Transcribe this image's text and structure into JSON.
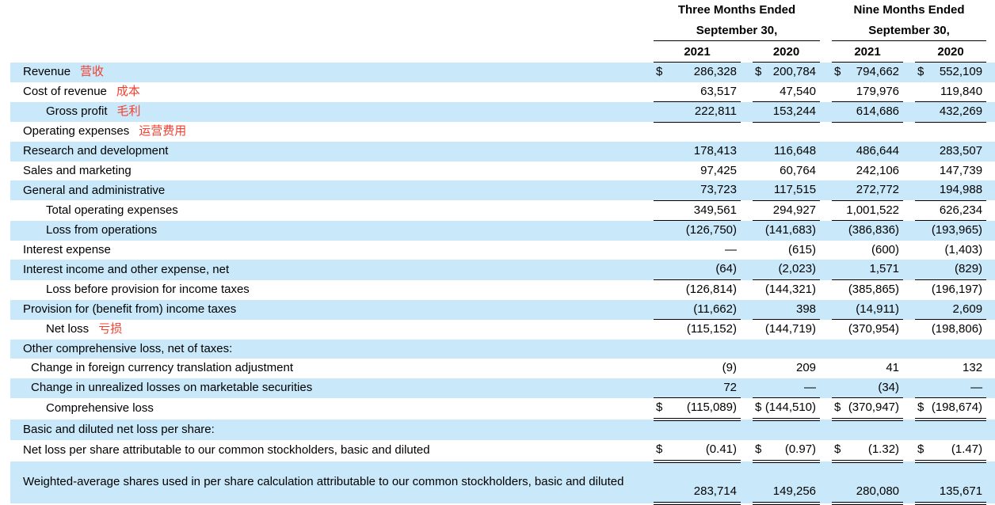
{
  "colors": {
    "row_highlight": "#c9e9fa",
    "annotation_red": "#f43d2d",
    "text": "#000000",
    "background": "#ffffff"
  },
  "table": {
    "currency_symbol": "$",
    "col_groups": [
      {
        "title_line1": "Three Months Ended",
        "title_line2": "September 30,",
        "years": [
          "2021",
          "2020"
        ]
      },
      {
        "title_line1": "Nine Months Ended",
        "title_line2": "September 30,",
        "years": [
          "2021",
          "2020"
        ]
      }
    ],
    "rows": [
      {
        "label": "Revenue",
        "annotation": "营收",
        "indent": 0,
        "highlight": true,
        "dollar": true,
        "underline": "none",
        "values": [
          "286,328",
          "200,784",
          "794,662",
          "552,109"
        ]
      },
      {
        "label": "Cost of revenue",
        "annotation": "成本",
        "indent": 0,
        "highlight": false,
        "dollar": false,
        "underline": "single",
        "values": [
          "63,517",
          "47,540",
          "179,976",
          "119,840"
        ]
      },
      {
        "label": "Gross profit",
        "annotation": "毛利",
        "indent": 2,
        "highlight": true,
        "dollar": false,
        "underline": "single",
        "values": [
          "222,811",
          "153,244",
          "614,686",
          "432,269"
        ]
      },
      {
        "label": "Operating expenses",
        "annotation": "运营费用",
        "indent": 0,
        "highlight": false,
        "dollar": false,
        "underline": "none",
        "values": [
          "",
          "",
          "",
          ""
        ]
      },
      {
        "label": "Research and development",
        "indent": 0,
        "highlight": true,
        "dollar": false,
        "underline": "none",
        "values": [
          "178,413",
          "116,648",
          "486,644",
          "283,507"
        ]
      },
      {
        "label": "Sales and marketing",
        "indent": 0,
        "highlight": false,
        "dollar": false,
        "underline": "none",
        "values": [
          "97,425",
          "60,764",
          "242,106",
          "147,739"
        ]
      },
      {
        "label": "General and administrative",
        "indent": 0,
        "highlight": true,
        "dollar": false,
        "underline": "single",
        "values": [
          "73,723",
          "117,515",
          "272,772",
          "194,988"
        ]
      },
      {
        "label": "Total operating expenses",
        "indent": 2,
        "highlight": false,
        "dollar": false,
        "underline": "single",
        "values": [
          "349,561",
          "294,927",
          "1,001,522",
          "626,234"
        ]
      },
      {
        "label": "Loss from operations",
        "indent": 2,
        "highlight": true,
        "dollar": false,
        "underline": "none",
        "values": [
          "(126,750)",
          "(141,683)",
          "(386,836)",
          "(193,965)"
        ]
      },
      {
        "label": "Interest expense",
        "indent": 0,
        "highlight": false,
        "dollar": false,
        "underline": "none",
        "values": [
          "—",
          "(615)",
          "(600)",
          "(1,403)"
        ]
      },
      {
        "label": "Interest income and other expense, net",
        "indent": 0,
        "highlight": true,
        "dollar": false,
        "underline": "single",
        "values": [
          "(64)",
          "(2,023)",
          "1,571",
          "(829)"
        ]
      },
      {
        "label": "Loss before provision for income taxes",
        "indent": 2,
        "highlight": false,
        "dollar": false,
        "underline": "none",
        "values": [
          "(126,814)",
          "(144,321)",
          "(385,865)",
          "(196,197)"
        ]
      },
      {
        "label": "Provision for (benefit from) income taxes",
        "indent": 0,
        "highlight": true,
        "dollar": false,
        "underline": "single",
        "values": [
          "(11,662)",
          "398",
          "(14,911)",
          "2,609"
        ]
      },
      {
        "label": "Net loss",
        "annotation": "亏损",
        "indent": 2,
        "highlight": false,
        "dollar": false,
        "underline": "none",
        "values": [
          "(115,152)",
          "(144,719)",
          "(370,954)",
          "(198,806)"
        ]
      },
      {
        "label": "Other comprehensive loss, net of taxes:",
        "indent": 0,
        "highlight": true,
        "dollar": false,
        "underline": "none",
        "values": [
          "",
          "",
          "",
          ""
        ]
      },
      {
        "label": "Change in foreign currency translation adjustment",
        "indent": 1,
        "highlight": false,
        "dollar": false,
        "underline": "none",
        "values": [
          "(9)",
          "209",
          "41",
          "132"
        ]
      },
      {
        "label": "Change in unrealized losses on marketable securities",
        "indent": 1,
        "highlight": true,
        "dollar": false,
        "underline": "single",
        "values": [
          "72",
          "—",
          "(34)",
          "—"
        ]
      },
      {
        "label": "Comprehensive loss",
        "indent": 2,
        "highlight": false,
        "dollar": true,
        "underline": "double",
        "values": [
          "(115,089)",
          "(144,510)",
          "(370,947)",
          "(198,674)"
        ]
      },
      {
        "label": "Basic and diluted net loss per share:",
        "indent": 0,
        "highlight": true,
        "dollar": false,
        "underline": "none",
        "values": [
          "",
          "",
          "",
          ""
        ]
      },
      {
        "label": "Net loss per share attributable to our common stockholders, basic and diluted",
        "indent": 0,
        "highlight": false,
        "dollar": true,
        "underline": "double",
        "values": [
          "(0.41)",
          "(0.97)",
          "(1.32)",
          "(1.47)"
        ]
      },
      {
        "label": "Weighted-average shares used in per share calculation attributable to our common stockholders, basic and diluted",
        "indent": 0,
        "highlight": true,
        "dollar": false,
        "underline": "double",
        "tall": true,
        "values": [
          "283,714",
          "149,256",
          "280,080",
          "135,671"
        ]
      }
    ]
  }
}
